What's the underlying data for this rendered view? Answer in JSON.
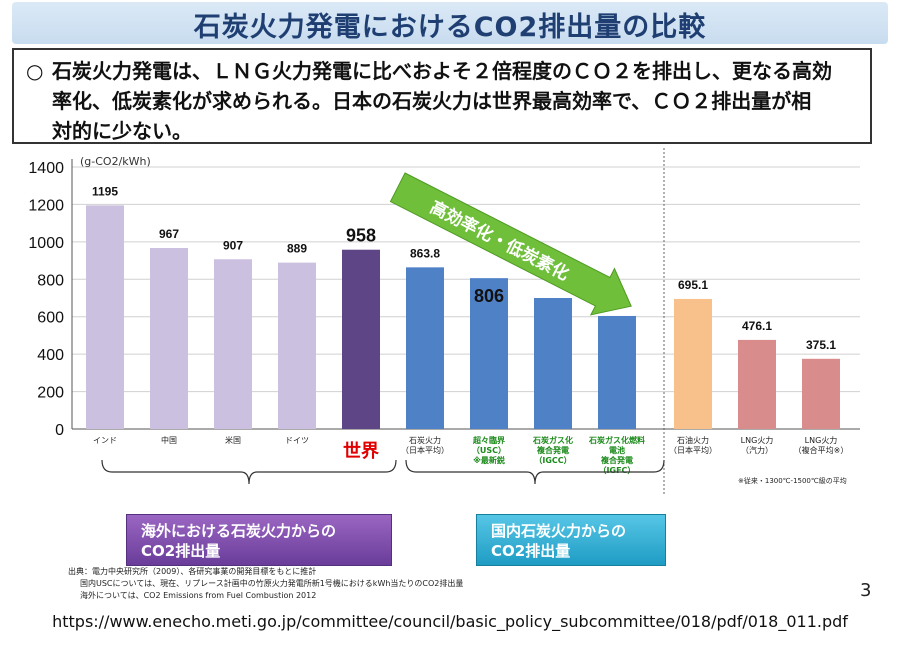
{
  "title": "石炭火力発電におけるCO2排出量の比較",
  "summary": {
    "bullet": "○",
    "line1": "石炭火力発電は、ＬＮＧ火力発電に比べおよそ２倍程度のＣＯ２を排出し、更なる高効",
    "line2": "率化、低炭素化が求められる。日本の石炭火力は世界最高効率で、ＣＯ２排出量が相",
    "line3": "対的に少ない。"
  },
  "chart_data": {
    "type": "bar",
    "unit_label": "(g-CO2/kWh)",
    "ylim": [
      0,
      1400
    ],
    "yticks": [
      0,
      200,
      400,
      600,
      800,
      1000,
      1200,
      1400
    ],
    "grid": true,
    "categories": [
      {
        "label": "インド",
        "value": 1195,
        "value_label": "1195",
        "color": "#cbc0df",
        "label_color": "#222222"
      },
      {
        "label": "中国",
        "value": 967,
        "value_label": "967",
        "color": "#cbc0df",
        "label_color": "#222222"
      },
      {
        "label": "米国",
        "value": 907,
        "value_label": "907",
        "color": "#cbc0df",
        "label_color": "#222222"
      },
      {
        "label": "ドイツ",
        "value": 889,
        "value_label": "889",
        "color": "#cbc0df",
        "label_color": "#222222"
      },
      {
        "label": "世界",
        "value": 958,
        "value_label": "958",
        "color": "#5e4585",
        "label_color": "#e00000"
      },
      {
        "label": "石炭火力\n（日本平均）",
        "value": 863.8,
        "value_label": "863.8",
        "color": "#4f81c7",
        "label_color": "#222222"
      },
      {
        "label": "超々臨界\n（USC）\n※最新鋭",
        "value": 806,
        "value_label": "806",
        "color": "#4f81c7",
        "label_color": "#1a8a1a"
      },
      {
        "label": "石炭ガス化\n複合発電\n（IGCC）",
        "value": 700,
        "value_label": "",
        "color": "#4f81c7",
        "label_color": "#1a8a1a"
      },
      {
        "label": "石炭ガス化燃料\n電池\n複合発電\n（IGFC）",
        "value": 604,
        "value_label": "",
        "color": "#4f81c7",
        "label_color": "#1a8a1a"
      },
      {
        "label": "石油火力\n（日本平均）",
        "value": 695.1,
        "value_label": "695.1",
        "color": "#f8c08a",
        "label_color": "#222222"
      },
      {
        "label": "LNG火力\n（汽力）",
        "value": 476.1,
        "value_label": "476.1",
        "color": "#d98c8c",
        "label_color": "#222222"
      },
      {
        "label": "LNG火力\n（複合平均※）",
        "value": 375.1,
        "value_label": "375.1",
        "color": "#d98c8c",
        "label_color": "#222222"
      }
    ],
    "arrow_label": "高効率化・低炭素化",
    "note": "※従来・1300℃-1500℃級の平均"
  },
  "groups": {
    "overseas": "海外における石炭火力からの\nCO2排出量",
    "domestic": "国内石炭火力からの\nCO2排出量"
  },
  "footer": {
    "line1": "出典：電力中央研究所（2009）、各研究事業の開発目標をもとに推計",
    "line2": "国内USCについては、現在、リプレース計画中の竹原火力発電所新1号機におけるkWh当たりのCO2排出量",
    "line3": "海外については、CO2 Emissions from Fuel Combustion 2012"
  },
  "page_number": "3",
  "source_url": "https://www.enecho.meti.go.jp/committee/council/basic_policy_subcommittee/018/pdf/018_011.pdf"
}
